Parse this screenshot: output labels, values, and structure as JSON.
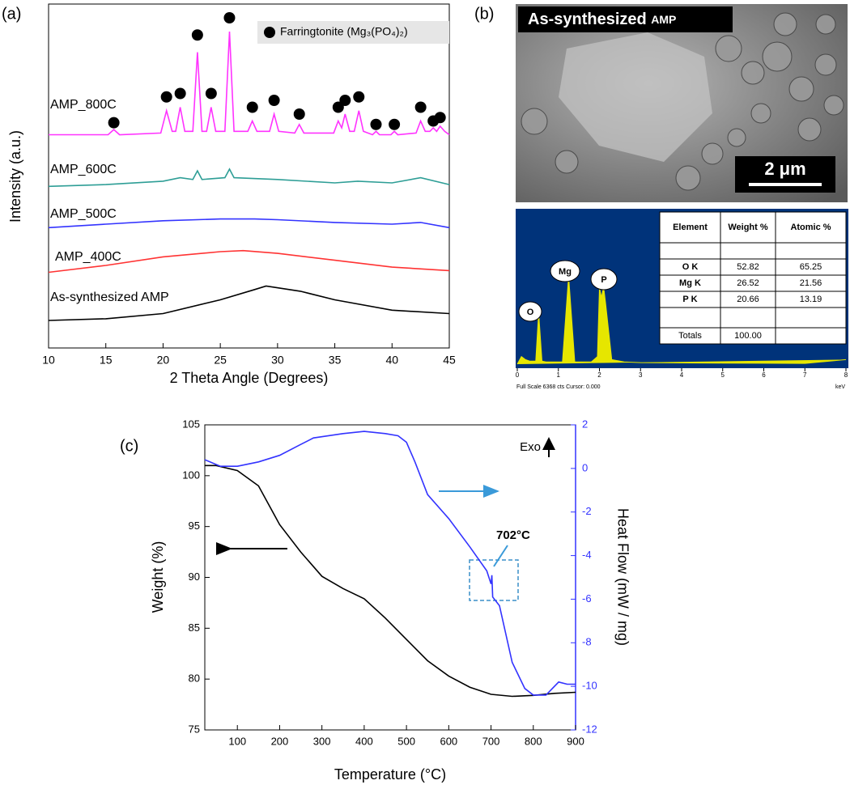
{
  "chart_data": [
    {
      "type": "line",
      "label": "(a)",
      "xlabel": "2 Theta Angle (Degrees)",
      "ylabel": "Intensity (a.u.)",
      "xlim": [
        10,
        45
      ],
      "xticks": [
        10,
        15,
        20,
        25,
        30,
        35,
        40,
        45
      ],
      "ylim": [
        0,
        100
      ],
      "series": [
        {
          "name": "As-synthesized AMP",
          "color": "#000000",
          "x": [
            10,
            15,
            20,
            25,
            28,
            29,
            32,
            35,
            40,
            45
          ],
          "values": [
            8,
            8.5,
            10,
            14,
            17,
            18,
            16.5,
            14,
            11,
            10
          ]
        },
        {
          "name": "AMP_400C",
          "color": "#ff3333",
          "x": [
            10,
            15,
            20,
            25,
            27,
            30,
            35,
            40,
            45
          ],
          "values": [
            22,
            24,
            26.5,
            28,
            28.3,
            27.5,
            25.5,
            23.5,
            22.5
          ]
        },
        {
          "name": "AMP_500C",
          "color": "#3333ff",
          "x": [
            10,
            15,
            20,
            25,
            28,
            30,
            35,
            40,
            42.5,
            45
          ],
          "values": [
            35,
            36,
            37,
            37.5,
            37.5,
            37.3,
            36.5,
            36,
            36.5,
            35
          ]
        },
        {
          "name": "AMP_600C",
          "color": "#2e9e96",
          "x": [
            10,
            15,
            20,
            21.5,
            22.6,
            23,
            23.4,
            25.4,
            25.8,
            26.2,
            30,
            35,
            37,
            40,
            42.5,
            45
          ],
          "values": [
            47,
            47.5,
            48.5,
            49.5,
            49,
            51.5,
            49,
            49.5,
            52,
            49.5,
            49,
            48,
            48.5,
            48,
            49.5,
            47.5
          ]
        },
        {
          "name": "AMP_800C",
          "color": "#ff33ff",
          "x": [
            10,
            15.2,
            15.7,
            16.2,
            19.8,
            20.3,
            20.8,
            21.1,
            21.5,
            21.9,
            22.6,
            23.0,
            23.4,
            23.8,
            24.2,
            24.6,
            25.4,
            25.8,
            26.2,
            27.4,
            27.8,
            28.2,
            29.3,
            29.7,
            30.1,
            31.5,
            31.9,
            32.3,
            34.9,
            35.3,
            35.6,
            35.9,
            36.3,
            36.7,
            37.1,
            37.5,
            38.3,
            38.6,
            38.9,
            39.9,
            40.2,
            40.5,
            42.1,
            42.5,
            42.9,
            43.3,
            43.6,
            43.9,
            44.2,
            44.6,
            45
          ],
          "values": [
            62,
            62,
            63.5,
            62,
            62.5,
            69,
            63,
            63,
            70,
            63,
            63,
            86,
            63,
            63,
            70,
            63,
            63,
            92,
            63,
            63,
            66,
            63,
            63,
            68,
            63,
            62.5,
            65,
            62.5,
            62.5,
            66,
            64,
            68,
            63,
            63,
            69,
            63,
            62,
            63,
            62,
            62,
            63,
            62,
            62.5,
            66,
            63,
            63,
            64,
            63,
            64.5,
            63,
            62
          ]
        }
      ],
      "markers": {
        "name": "Farringtonite (Mg₃(PO₄)₂)",
        "color": "#000000",
        "x": [
          15.7,
          20.3,
          21.5,
          23.0,
          24.2,
          25.8,
          27.8,
          29.7,
          31.9,
          35.3,
          35.9,
          37.1,
          38.6,
          40.2,
          42.5,
          43.6,
          44.2
        ],
        "values": [
          65.5,
          73,
          74,
          91,
          74,
          96,
          70,
          72,
          68,
          70,
          72,
          73,
          65,
          65,
          70,
          66,
          67
        ]
      }
    },
    {
      "type": "area",
      "xlabel": "keV",
      "xlim": [
        0,
        8
      ],
      "xticks": [
        0,
        1,
        2,
        3,
        4,
        5,
        6,
        7,
        8
      ],
      "ylim": [
        0,
        100
      ],
      "color": "#e6e600",
      "x": [
        0,
        0.1,
        0.2,
        0.3,
        0.45,
        0.52,
        0.6,
        0.7,
        1.1,
        1.25,
        1.4,
        1.8,
        1.95,
        2.0,
        2.05,
        2.1,
        2.15,
        2.3,
        2.6,
        3,
        4,
        5,
        6,
        7,
        8
      ],
      "values": [
        0,
        5,
        3,
        2,
        2,
        34,
        2,
        1.5,
        1.5,
        58,
        1.5,
        1.5,
        5,
        50,
        44,
        51,
        40,
        3,
        1.5,
        1,
        0.8,
        0.7,
        0.6,
        0.5,
        3
      ],
      "annotations": [
        "O",
        "Mg",
        "P"
      ],
      "footer": "Full Scale 6368 cts Cursor: 0.000"
    },
    {
      "type": "dual-line",
      "label": "(c)",
      "xlabel": "Temperature (°C)",
      "ylabel": "Weight (%)",
      "y2label": "Heat Flow (mW / mg)",
      "xlim": [
        23,
        900
      ],
      "xticks": [
        100,
        200,
        300,
        400,
        500,
        600,
        700,
        800,
        900
      ],
      "ylim": [
        75,
        105
      ],
      "yticks": [
        75,
        80,
        85,
        90,
        95,
        100,
        105
      ],
      "y2lim": [
        -12,
        2
      ],
      "y2ticks": [
        -12,
        -10,
        -8,
        -6,
        -4,
        -2,
        0,
        2
      ],
      "series": [
        {
          "color": "#000000",
          "x": [
            23,
            50,
            100,
            150,
            200,
            250,
            300,
            350,
            400,
            450,
            500,
            550,
            600,
            650,
            700,
            750,
            800,
            850,
            900
          ],
          "values": [
            101,
            101,
            100.5,
            99,
            95.2,
            92.5,
            90.1,
            88.9,
            87.9,
            86,
            83.9,
            81.8,
            80.3,
            79.2,
            78.5,
            78.3,
            78.4,
            78.6,
            78.7
          ]
        },
        {
          "color": "#3333ff",
          "axis": "y2",
          "x": [
            23,
            60,
            100,
            150,
            200,
            250,
            280,
            350,
            400,
            450,
            480,
            500,
            520,
            550,
            600,
            650,
            690,
            700,
            702,
            704,
            720,
            750,
            780,
            800,
            830,
            860,
            880,
            900
          ],
          "values": [
            0.4,
            0.1,
            0.1,
            0.3,
            0.6,
            1.1,
            1.4,
            1.6,
            1.7,
            1.6,
            1.5,
            1.2,
            0.3,
            -1.2,
            -2.3,
            -3.6,
            -4.7,
            -5.3,
            -4.9,
            -5.9,
            -6.3,
            -8.9,
            -10.1,
            -10.4,
            -10.4,
            -9.8,
            -9.9,
            -9.9
          ]
        }
      ],
      "annotations": [
        "Exo",
        "702°C"
      ]
    }
  ],
  "sem": {
    "label": "(b)",
    "caption": "As-synthesized",
    "caption_sub": "AMP",
    "scale_bar": "2 μm"
  },
  "eds_table": {
    "columns": [
      "Element",
      "Weight %",
      "Atomic %"
    ],
    "rows": [
      [
        "O K",
        "52.82",
        "65.25"
      ],
      [
        "Mg K",
        "26.52",
        "21.56"
      ],
      [
        "P K",
        "20.66",
        "13.19"
      ],
      [
        "Totals",
        "100.00"
      ]
    ]
  }
}
